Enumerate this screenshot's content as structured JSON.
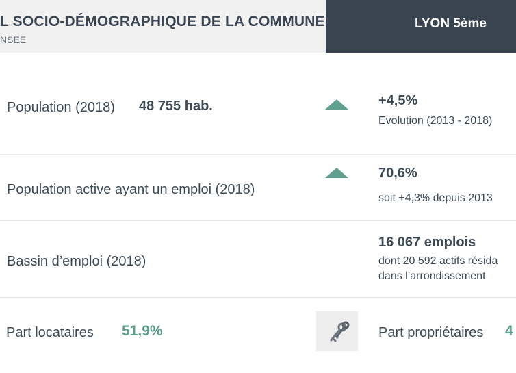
{
  "header": {
    "title": "L SOCIO-DÉMOGRAPHIQUE DE LA COMMUNE",
    "subtitle": "NSEE",
    "commune": "LYON 5ème"
  },
  "rows": [
    {
      "label": "Population (2018)",
      "value": "48 755 hab.",
      "trend_icon": "up-triangle-icon",
      "stat": "+4,5%",
      "note": "Evolution (2013 - 2018)"
    },
    {
      "label": "Population active ayant un emploi (2018)",
      "trend_icon": "up-triangle-icon",
      "stat": "70,6%",
      "note": "soit  +4,3% depuis 2013"
    },
    {
      "label": "Bassin d’emploi (2018)",
      "stat": "16 067 emplois",
      "note_line1": "dont 20 592 actifs résida",
      "note_line2": "dans l’arrondissement"
    },
    {
      "label": "Part locataires",
      "value": "51,9%",
      "icon": "keys-icon",
      "label2": "Part propriétaires",
      "value2": "4"
    }
  ],
  "colors": {
    "accent": "#5e9f8e",
    "header_dark": "#3a4450",
    "header_light": "#f1f1f1",
    "text": "#3d4a56"
  }
}
